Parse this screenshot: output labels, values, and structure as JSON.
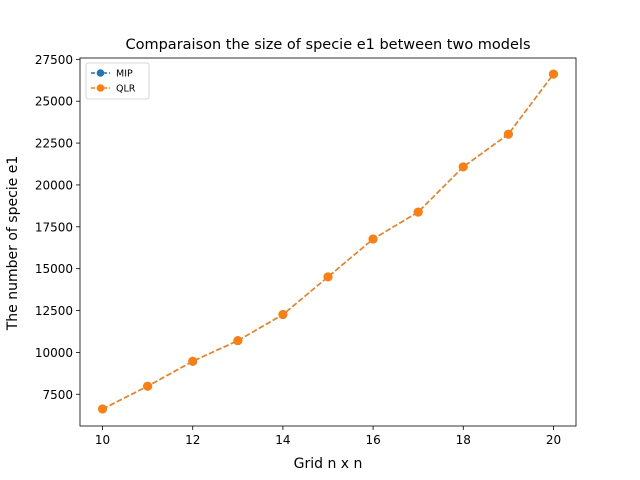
{
  "chart_data": {
    "type": "line",
    "title": "Comparaison the size of specie e1 between two models",
    "xlabel": "Grid n x n",
    "ylabel": "The number of specie e1",
    "x": [
      10,
      11,
      12,
      13,
      14,
      15,
      16,
      17,
      18,
      19,
      20
    ],
    "xlim": [
      9.5,
      20.5
    ],
    "ylim": [
      5605,
      27580
    ],
    "xticks": [
      "10",
      "12",
      "14",
      "16",
      "18",
      "20"
    ],
    "yticks": [
      "7500",
      "10000",
      "12500",
      "15000",
      "17500",
      "20000",
      "22500",
      "25000",
      "27500"
    ],
    "grid": false,
    "legend_position": "top-left",
    "series": [
      {
        "name": "MIP",
        "color": "#1f77b4",
        "values": [
          6620,
          7980,
          9470,
          10700,
          12260,
          14510,
          16770,
          18380,
          21080,
          23030,
          26620
        ]
      },
      {
        "name": "QLR",
        "color": "#ff7f0e",
        "values": [
          6620,
          7980,
          9470,
          10700,
          12260,
          14510,
          16770,
          18380,
          21080,
          23030,
          26620
        ]
      }
    ]
  }
}
